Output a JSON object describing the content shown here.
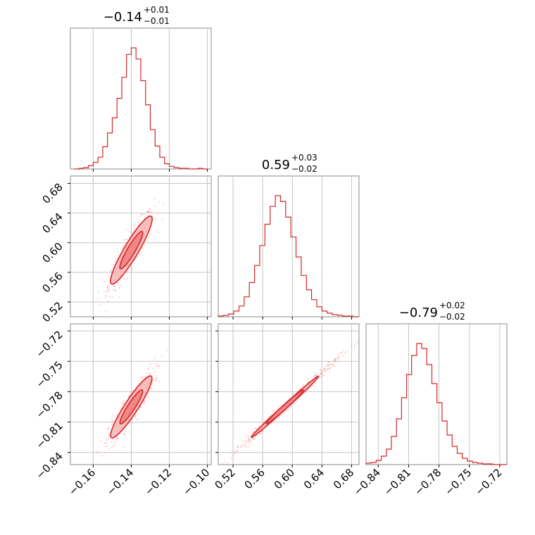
{
  "chart_data": {
    "type": "corner",
    "color": "#d62728",
    "parameters": [
      {
        "range": [
          -0.172,
          -0.098
        ],
        "ticks": [
          -0.16,
          -0.14,
          -0.12,
          -0.1
        ],
        "tick_labels": [
          "−0.16",
          "−0.14",
          "−0.12",
          "−0.10"
        ],
        "title_value": "−0.14",
        "title_plus": "+0.01",
        "title_minus": "−0.01",
        "center": -0.14,
        "spread": 0.0055
      },
      {
        "range": [
          0.5,
          0.69
        ],
        "ticks": [
          0.52,
          0.56,
          0.6,
          0.64,
          0.68
        ],
        "tick_labels": [
          "0.52",
          "0.56",
          "0.60",
          "0.64",
          "0.68"
        ],
        "title_value": "0.59",
        "title_plus": "+0.03",
        "title_minus": "−0.02",
        "center": 0.59,
        "spread": 0.024
      },
      {
        "range": [
          -0.852,
          -0.713
        ],
        "ticks": [
          -0.84,
          -0.81,
          -0.78,
          -0.75,
          -0.72
        ],
        "tick_labels": [
          "−0.84",
          "−0.81",
          "−0.78",
          "−0.75",
          "−0.72"
        ],
        "title_value": "−0.79",
        "title_plus": "+0.02",
        "title_minus": "−0.02",
        "center": -0.795,
        "spread": 0.016
      }
    ],
    "histograms": [
      {
        "param": 0,
        "bin_edges": [
          -0.17,
          -0.1675,
          -0.165,
          -0.1625,
          -0.16,
          -0.1575,
          -0.155,
          -0.1525,
          -0.15,
          -0.1475,
          -0.145,
          -0.1425,
          -0.14,
          -0.1375,
          -0.135,
          -0.1325,
          -0.13,
          -0.1275,
          -0.125,
          -0.1225,
          -0.12,
          -0.1175,
          -0.115,
          -0.1125,
          -0.11,
          -0.1075,
          -0.105,
          -0.1025,
          -0.1
        ],
        "counts": [
          0,
          1,
          2,
          5,
          10,
          18,
          34,
          55,
          78,
          108,
          140,
          175,
          185,
          168,
          135,
          98,
          60,
          35,
          18,
          8,
          4,
          2,
          1,
          1,
          0,
          0,
          1,
          0
        ]
      },
      {
        "param": 1,
        "bin_edges": [
          0.5,
          0.507,
          0.514,
          0.521,
          0.528,
          0.535,
          0.542,
          0.549,
          0.556,
          0.563,
          0.57,
          0.577,
          0.584,
          0.591,
          0.598,
          0.605,
          0.612,
          0.619,
          0.626,
          0.633,
          0.64,
          0.647,
          0.654,
          0.661,
          0.668,
          0.675,
          0.682,
          0.69
        ],
        "counts": [
          1,
          2,
          4,
          8,
          15,
          28,
          48,
          72,
          100,
          130,
          155,
          170,
          162,
          140,
          112,
          84,
          58,
          38,
          24,
          14,
          8,
          5,
          3,
          2,
          1,
          1,
          0
        ]
      },
      {
        "param": 2,
        "bin_edges": [
          -0.852,
          -0.847,
          -0.842,
          -0.837,
          -0.832,
          -0.827,
          -0.822,
          -0.817,
          -0.812,
          -0.807,
          -0.802,
          -0.797,
          -0.792,
          -0.787,
          -0.782,
          -0.777,
          -0.772,
          -0.767,
          -0.762,
          -0.757,
          -0.752,
          -0.747,
          -0.742,
          -0.737,
          -0.732,
          -0.727,
          -0.722,
          -0.713
        ],
        "counts": [
          2,
          3,
          6,
          12,
          22,
          40,
          65,
          95,
          128,
          155,
          172,
          165,
          142,
          115,
          88,
          62,
          42,
          26,
          16,
          9,
          5,
          3,
          2,
          1,
          1,
          0,
          0
        ]
      }
    ],
    "pairs": [
      {
        "x_param": 0,
        "y_param": 1,
        "correlation": 0.9
      },
      {
        "x_param": 0,
        "y_param": 2,
        "correlation": 0.9
      },
      {
        "x_param": 1,
        "y_param": 2,
        "correlation": 0.995
      }
    ],
    "grid": true
  }
}
